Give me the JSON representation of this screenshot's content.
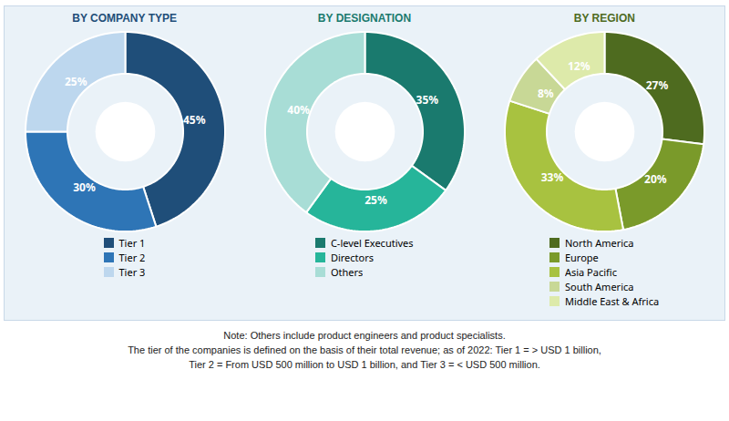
{
  "chart_data": [
    {
      "type": "pie",
      "title": "BY COMPANY TYPE",
      "categories": [
        "Tier 1",
        "Tier 2",
        "Tier 3"
      ],
      "values": [
        45,
        30,
        25
      ],
      "value_labels": [
        "45%",
        "30%",
        "25%"
      ],
      "colors": [
        "#1f4e79",
        "#2e75b6",
        "#bdd7ee"
      ],
      "data_labels": true,
      "legend": "bottom"
    },
    {
      "type": "pie",
      "title": "BY DESIGNATION",
      "categories": [
        "C-level Executives",
        "Directors",
        "Others"
      ],
      "values": [
        35,
        25,
        40
      ],
      "value_labels": [
        "35%",
        "25%",
        "40%"
      ],
      "colors": [
        "#1a7a6e",
        "#26b59a",
        "#a8ddd6"
      ],
      "data_labels": true,
      "legend": "bottom"
    },
    {
      "type": "pie",
      "title": "BY REGION",
      "categories": [
        "North America",
        "Europe",
        "Asia Pacific",
        "South America",
        "Middle East & Africa"
      ],
      "values": [
        27,
        20,
        33,
        8,
        12
      ],
      "value_labels": [
        "27%",
        "20%",
        "33%",
        "8%",
        "12%"
      ],
      "colors": [
        "#4e6b1f",
        "#7a9a2a",
        "#a8c240",
        "#c8d896",
        "#ddeaaa"
      ],
      "data_labels": true,
      "legend": "bottom"
    }
  ],
  "annotations": [
    "Note: Others include product engineers and product specialists.",
    "The tier of the companies is defined on the basis of their total revenue; as of 2022: Tier 1 = > USD 1 billion,",
    "Tier 2 = From USD 500 million to USD 1 billion, and Tier 3 = < USD 500 million."
  ]
}
